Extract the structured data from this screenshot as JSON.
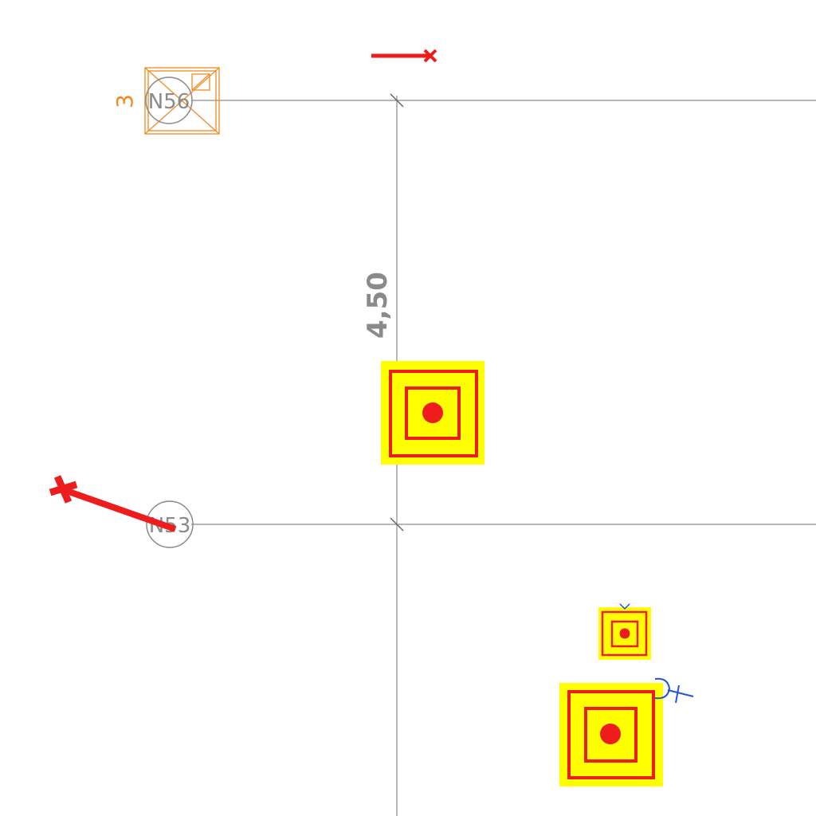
{
  "drawing": {
    "dimension_label": "4,50",
    "nodes": [
      {
        "id": "node-n56",
        "label": "N56"
      },
      {
        "id": "node-n53",
        "label": "N53"
      }
    ],
    "orange_marker_label": "3",
    "colors": {
      "background": "#ffffff",
      "gridline": "#8c8c8c",
      "support_fill": "#ffff00",
      "support_stroke": "#ee1c1c",
      "orange": "#f08a24",
      "blue": "#2255dd"
    },
    "icons": [
      "pile-support-icon",
      "load-arrow-icon",
      "hinge-symbol-icon",
      "box-cross-icon"
    ]
  }
}
